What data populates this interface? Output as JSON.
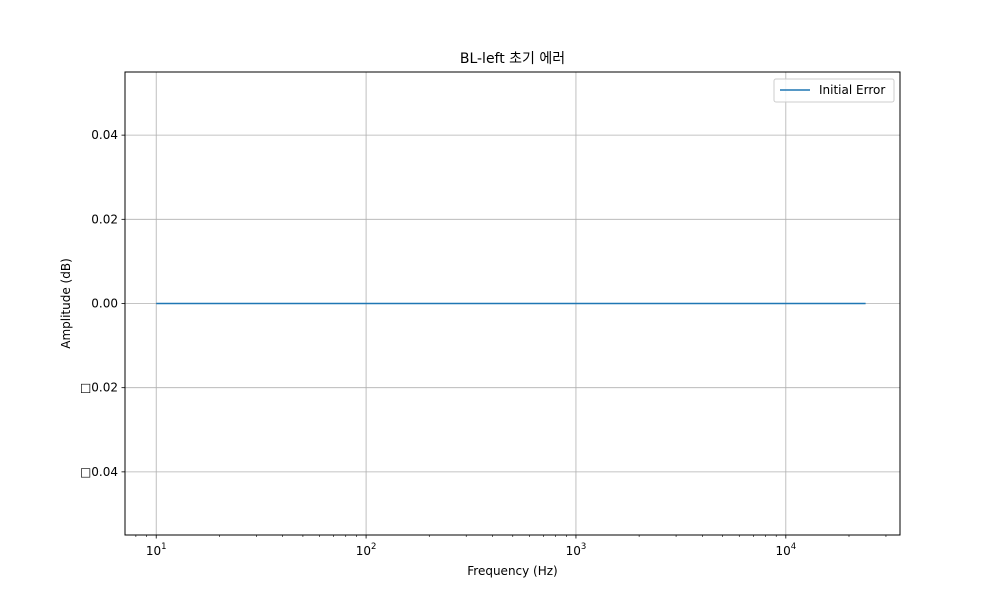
{
  "chart_data": {
    "type": "line",
    "title": "BL-left 초기 에러",
    "xlabel": "Frequency (Hz)",
    "ylabel": "Amplitude (dB)",
    "xscale": "log",
    "xlim": [
      7.1,
      35000
    ],
    "ylim": [
      -0.055,
      0.055
    ],
    "x_major_ticks": [
      10,
      100,
      1000,
      10000
    ],
    "x_tick_labels": [
      {
        "base": "10",
        "exp": "1"
      },
      {
        "base": "10",
        "exp": "2"
      },
      {
        "base": "10",
        "exp": "3"
      },
      {
        "base": "10",
        "exp": "4"
      }
    ],
    "y_ticks": [
      0.04,
      0.02,
      0.0,
      -0.02,
      -0.04
    ],
    "y_tick_labels": [
      "0.04",
      "0.02",
      "0.00",
      "□0.02",
      "□0.04"
    ],
    "grid": true,
    "legend_position": "top-right",
    "series": [
      {
        "name": "Initial Error",
        "color": "#1f77b4",
        "x": [
          10,
          24000
        ],
        "y": [
          0.0,
          0.0
        ]
      }
    ]
  }
}
